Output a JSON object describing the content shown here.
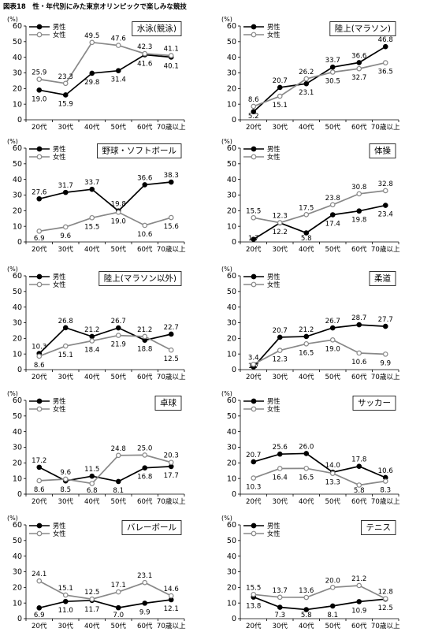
{
  "page_title": "図表18　性・年代別にみた東京オリンピックで楽しみな競技",
  "legend_labels": {
    "male": "男性",
    "female": "女性"
  },
  "colors": {
    "male": "#000000",
    "female": "#888888"
  },
  "chart_data": [
    {
      "type": "line",
      "title": "水泳(競泳)",
      "ylabel": "(%)",
      "ylim": [
        0,
        60
      ],
      "categories": [
        "20代",
        "30代",
        "40代",
        "50代",
        "60代",
        "70歳以上"
      ],
      "series": [
        {
          "name": "男性",
          "values": [
            19.0,
            15.9,
            29.8,
            31.4,
            41.6,
            40.1
          ]
        },
        {
          "name": "女性",
          "values": [
            25.9,
            23.3,
            49.5,
            47.6,
            42.3,
            41.1
          ]
        }
      ]
    },
    {
      "type": "line",
      "title": "陸上(マラソン)",
      "ylabel": "(%)",
      "ylim": [
        0,
        60
      ],
      "categories": [
        "20代",
        "30代",
        "40代",
        "50代",
        "60代",
        "70歳以上"
      ],
      "series": [
        {
          "name": "男性",
          "values": [
            5.2,
            20.7,
            23.1,
            33.7,
            36.6,
            46.8
          ]
        },
        {
          "name": "女性",
          "values": [
            8.6,
            15.1,
            26.2,
            30.5,
            32.7,
            36.5
          ]
        }
      ]
    },
    {
      "type": "line",
      "title": "野球・ソフトボール",
      "ylabel": "(%)",
      "ylim": [
        0,
        60
      ],
      "categories": [
        "20代",
        "30代",
        "40代",
        "50代",
        "60代",
        "70歳以上"
      ],
      "series": [
        {
          "name": "男性",
          "values": [
            27.6,
            31.7,
            33.7,
            19.8,
            36.6,
            38.3
          ]
        },
        {
          "name": "女性",
          "values": [
            6.9,
            9.6,
            15.5,
            19.0,
            10.6,
            15.6
          ]
        }
      ]
    },
    {
      "type": "line",
      "title": "体操",
      "ylabel": "(%)",
      "ylim": [
        0,
        60
      ],
      "categories": [
        "20代",
        "30代",
        "40代",
        "50代",
        "60代",
        "70歳以上"
      ],
      "series": [
        {
          "name": "男性",
          "values": [
            1.7,
            12.2,
            5.8,
            17.4,
            19.8,
            23.4
          ]
        },
        {
          "name": "女性",
          "values": [
            15.5,
            12.3,
            17.5,
            23.8,
            30.8,
            32.8
          ]
        }
      ]
    },
    {
      "type": "line",
      "title": "陸上(マラソン以外)",
      "ylabel": "(%)",
      "ylim": [
        0,
        60
      ],
      "categories": [
        "20代",
        "30代",
        "40代",
        "50代",
        "60代",
        "70歳以上"
      ],
      "series": [
        {
          "name": "男性",
          "values": [
            10.3,
            26.8,
            21.2,
            26.7,
            18.8,
            22.7
          ]
        },
        {
          "name": "女性",
          "values": [
            8.6,
            15.1,
            18.4,
            21.9,
            21.2,
            12.5
          ]
        }
      ]
    },
    {
      "type": "line",
      "title": "柔道",
      "ylabel": "(%)",
      "ylim": [
        0,
        60
      ],
      "categories": [
        "20代",
        "30代",
        "40代",
        "50代",
        "60代",
        "70歳以上"
      ],
      "series": [
        {
          "name": "男性",
          "values": [
            1.7,
            20.7,
            21.2,
            26.7,
            28.7,
            27.7
          ]
        },
        {
          "name": "女性",
          "values": [
            3.4,
            12.3,
            16.5,
            19.0,
            10.6,
            9.9
          ]
        }
      ]
    },
    {
      "type": "line",
      "title": "卓球",
      "ylabel": "(%)",
      "ylim": [
        0,
        60
      ],
      "categories": [
        "20代",
        "30代",
        "40代",
        "50代",
        "60代",
        "70歳以上"
      ],
      "series": [
        {
          "name": "男性",
          "values": [
            17.2,
            8.5,
            11.5,
            8.1,
            16.8,
            17.7
          ]
        },
        {
          "name": "女性",
          "values": [
            8.6,
            9.6,
            6.8,
            24.8,
            25.0,
            20.3
          ]
        }
      ]
    },
    {
      "type": "line",
      "title": "サッカー",
      "ylabel": "(%)",
      "ylim": [
        0,
        60
      ],
      "categories": [
        "20代",
        "30代",
        "40代",
        "50代",
        "60代",
        "70歳以上"
      ],
      "series": [
        {
          "name": "男性",
          "values": [
            20.7,
            25.6,
            26.0,
            14.0,
            17.8,
            10.6
          ]
        },
        {
          "name": "女性",
          "values": [
            10.3,
            16.4,
            16.5,
            13.3,
            5.8,
            8.3
          ]
        }
      ]
    },
    {
      "type": "line",
      "title": "バレーボール",
      "ylabel": "(%)",
      "ylim": [
        0,
        60
      ],
      "categories": [
        "20代",
        "30代",
        "40代",
        "50代",
        "60代",
        "70歳以上"
      ],
      "series": [
        {
          "name": "男性",
          "values": [
            6.9,
            11.0,
            11.7,
            7.0,
            9.9,
            12.1
          ]
        },
        {
          "name": "女性",
          "values": [
            24.1,
            15.1,
            12.5,
            17.1,
            23.1,
            14.6
          ]
        }
      ]
    },
    {
      "type": "line",
      "title": "テニス",
      "ylabel": "(%)",
      "ylim": [
        0,
        60
      ],
      "categories": [
        "20代",
        "30代",
        "40代",
        "50代",
        "60代",
        "70歳以上"
      ],
      "series": [
        {
          "name": "男性",
          "values": [
            13.8,
            7.3,
            5.8,
            8.1,
            10.9,
            12.5
          ]
        },
        {
          "name": "女性",
          "values": [
            15.5,
            13.7,
            13.6,
            20.0,
            21.2,
            12.8
          ]
        }
      ]
    }
  ]
}
